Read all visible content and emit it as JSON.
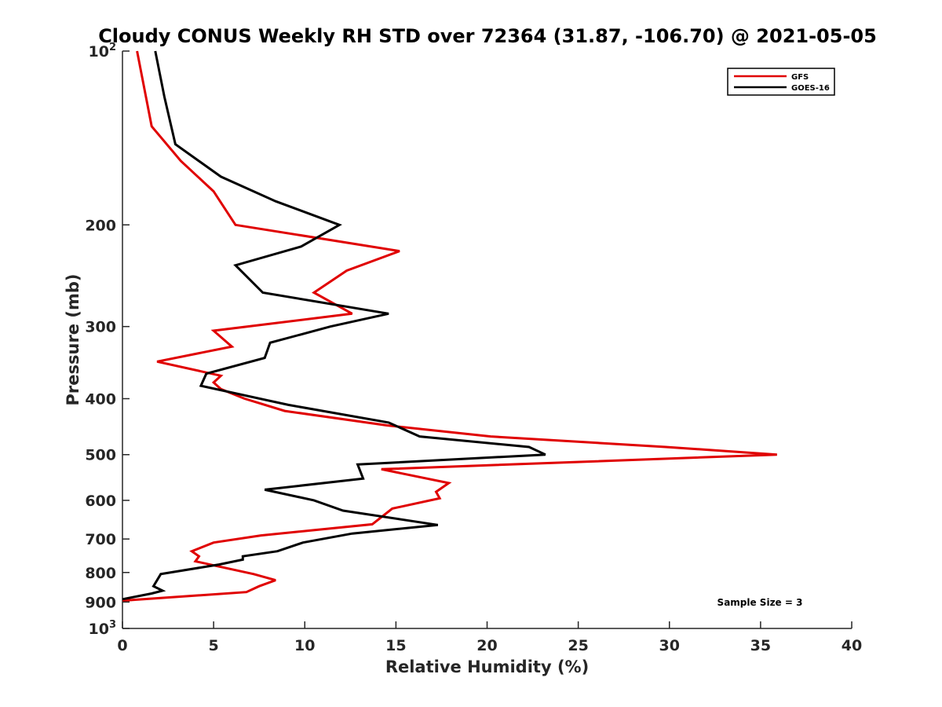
{
  "chart_data": {
    "type": "line",
    "title": "Cloudy CONUS Weekly RH STD over 72364 (31.87, -106.70) @ 2021-05-05",
    "xlabel": "Relative Humidity (%)",
    "ylabel": "Pressure (mb)",
    "xlim": [
      0,
      40
    ],
    "ylim": [
      100,
      1000
    ],
    "y_scale": "log",
    "y_reversed": true,
    "grid": false,
    "legend_position": "top-right",
    "x_ticks": [
      0,
      5,
      10,
      15,
      20,
      25,
      30,
      35,
      40
    ],
    "x_tick_labels": [
      "0",
      "5",
      "10",
      "15",
      "20",
      "25",
      "30",
      "35",
      "40"
    ],
    "y_ticks": [
      100,
      200,
      300,
      400,
      500,
      600,
      700,
      800,
      900,
      1000
    ],
    "y_tick_labels": [
      {
        "base": "10",
        "exp": "2"
      },
      {
        "base": "200",
        "exp": ""
      },
      {
        "base": "300",
        "exp": ""
      },
      {
        "base": "400",
        "exp": ""
      },
      {
        "base": "500",
        "exp": ""
      },
      {
        "base": "600",
        "exp": ""
      },
      {
        "base": "700",
        "exp": ""
      },
      {
        "base": "800",
        "exp": ""
      },
      {
        "base": "900",
        "exp": ""
      },
      {
        "base": "10",
        "exp": "3"
      }
    ],
    "annotation": "Sample Size = 3",
    "series": [
      {
        "name": "GFS",
        "color": "#e00000",
        "points": [
          [
            0.8,
            100
          ],
          [
            1.6,
            135
          ],
          [
            3.2,
            155
          ],
          [
            5.0,
            175
          ],
          [
            6.2,
            200
          ],
          [
            15.2,
            222
          ],
          [
            12.3,
            240
          ],
          [
            10.5,
            262
          ],
          [
            12.6,
            285
          ],
          [
            5.0,
            305
          ],
          [
            6.0,
            325
          ],
          [
            1.9,
            345
          ],
          [
            5.4,
            365
          ],
          [
            5.0,
            375
          ],
          [
            5.4,
            385
          ],
          [
            6.7,
            400
          ],
          [
            8.9,
            420
          ],
          [
            14.5,
            445
          ],
          [
            20.2,
            465
          ],
          [
            29.8,
            485
          ],
          [
            35.9,
            500
          ],
          [
            14.2,
            530
          ],
          [
            17.9,
            560
          ],
          [
            17.2,
            580
          ],
          [
            17.4,
            595
          ],
          [
            14.8,
            620
          ],
          [
            13.7,
            660
          ],
          [
            7.6,
            690
          ],
          [
            5.0,
            710
          ],
          [
            3.8,
            735
          ],
          [
            4.2,
            750
          ],
          [
            4.0,
            765
          ],
          [
            5.2,
            780
          ],
          [
            7.2,
            805
          ],
          [
            8.4,
            825
          ],
          [
            7.5,
            845
          ],
          [
            6.8,
            865
          ],
          [
            0.0,
            895
          ]
        ]
      },
      {
        "name": "GOES-16",
        "color": "#000000",
        "points": [
          [
            1.8,
            100
          ],
          [
            2.3,
            120
          ],
          [
            2.9,
            145
          ],
          [
            5.4,
            165
          ],
          [
            8.4,
            182
          ],
          [
            11.9,
            200
          ],
          [
            9.8,
            218
          ],
          [
            6.2,
            235
          ],
          [
            7.7,
            262
          ],
          [
            14.6,
            285
          ],
          [
            11.4,
            300
          ],
          [
            8.1,
            320
          ],
          [
            7.8,
            340
          ],
          [
            4.6,
            362
          ],
          [
            4.3,
            380
          ],
          [
            9.1,
            410
          ],
          [
            14.6,
            440
          ],
          [
            16.3,
            465
          ],
          [
            22.3,
            485
          ],
          [
            23.2,
            500
          ],
          [
            12.9,
            520
          ],
          [
            13.2,
            550
          ],
          [
            7.8,
            575
          ],
          [
            10.5,
            600
          ],
          [
            12.1,
            625
          ],
          [
            17.3,
            662
          ],
          [
            12.6,
            685
          ],
          [
            9.9,
            710
          ],
          [
            8.5,
            735
          ],
          [
            6.6,
            750
          ],
          [
            6.6,
            760
          ],
          [
            5.3,
            775
          ],
          [
            2.1,
            805
          ],
          [
            1.7,
            845
          ],
          [
            2.2,
            860
          ],
          [
            1.6,
            870
          ],
          [
            0.0,
            890
          ]
        ]
      }
    ]
  }
}
